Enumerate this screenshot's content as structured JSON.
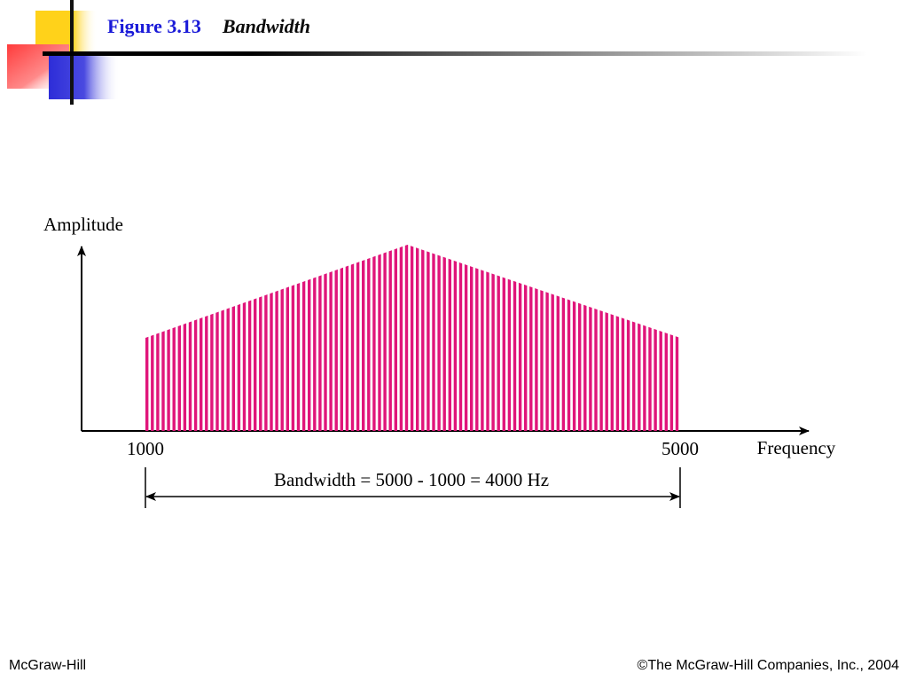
{
  "slide": {
    "figure_number": "Figure 3.13",
    "figure_title": "Bandwidth"
  },
  "diagram": {
    "y_axis_label": "Amplitude",
    "x_axis_label": "Frequency",
    "low_frequency_label": "1000",
    "high_frequency_label": "5000",
    "bandwidth_label": "Bandwidth = 5000 - 1000 = 4000 Hz",
    "spectrum_color": "#e0157a",
    "spectrum": {
      "low_frequency": 1000,
      "high_frequency": 5000,
      "peak_frequency": 2960,
      "edge_amplitude_fraction": 0.5,
      "peak_amplitude_fraction": 1.0
    }
  },
  "footer": {
    "publisher": "McGraw-Hill",
    "copyright": "©The McGraw-Hill Companies, Inc., 2004"
  },
  "colors": {
    "title_blue": "#1a1ad8",
    "logo_yellow": "#ffd21a",
    "logo_red": "#ff3b3b",
    "logo_blue": "#2d2dd8"
  }
}
